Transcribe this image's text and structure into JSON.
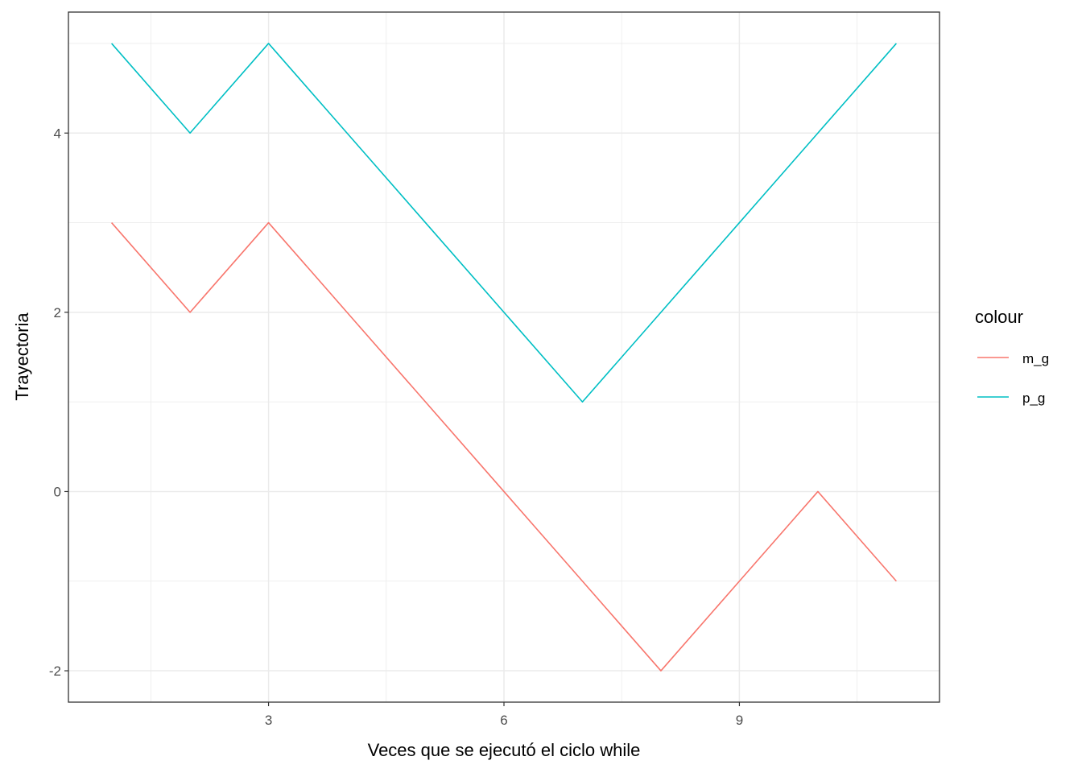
{
  "chart_data": {
    "type": "line",
    "title": "",
    "xlabel": "Veces que se ejecutó el ciclo while",
    "ylabel": "Trayectoria",
    "x": [
      1,
      2,
      3,
      4,
      5,
      6,
      7,
      8,
      9,
      10,
      11
    ],
    "xlim": [
      0.45,
      11.55
    ],
    "ylim": [
      -2.35,
      5.35
    ],
    "xticks": [
      3,
      6,
      9
    ],
    "yticks": [
      -2,
      0,
      2,
      4
    ],
    "xminor": [
      1.5,
      4.5,
      7.5,
      10.5
    ],
    "yminor": [
      -1,
      1,
      3,
      5
    ],
    "grid": true,
    "legend": {
      "title": "colour",
      "position": "right"
    },
    "series": [
      {
        "name": "m_g",
        "color": "#F8766D",
        "values": [
          3,
          2,
          3,
          2,
          1,
          0,
          -1,
          -2,
          -1,
          0,
          -1
        ]
      },
      {
        "name": "p_g",
        "color": "#00BFC4",
        "values": [
          5,
          4,
          5,
          4,
          3,
          2,
          1,
          2,
          3,
          4,
          5
        ]
      }
    ]
  }
}
